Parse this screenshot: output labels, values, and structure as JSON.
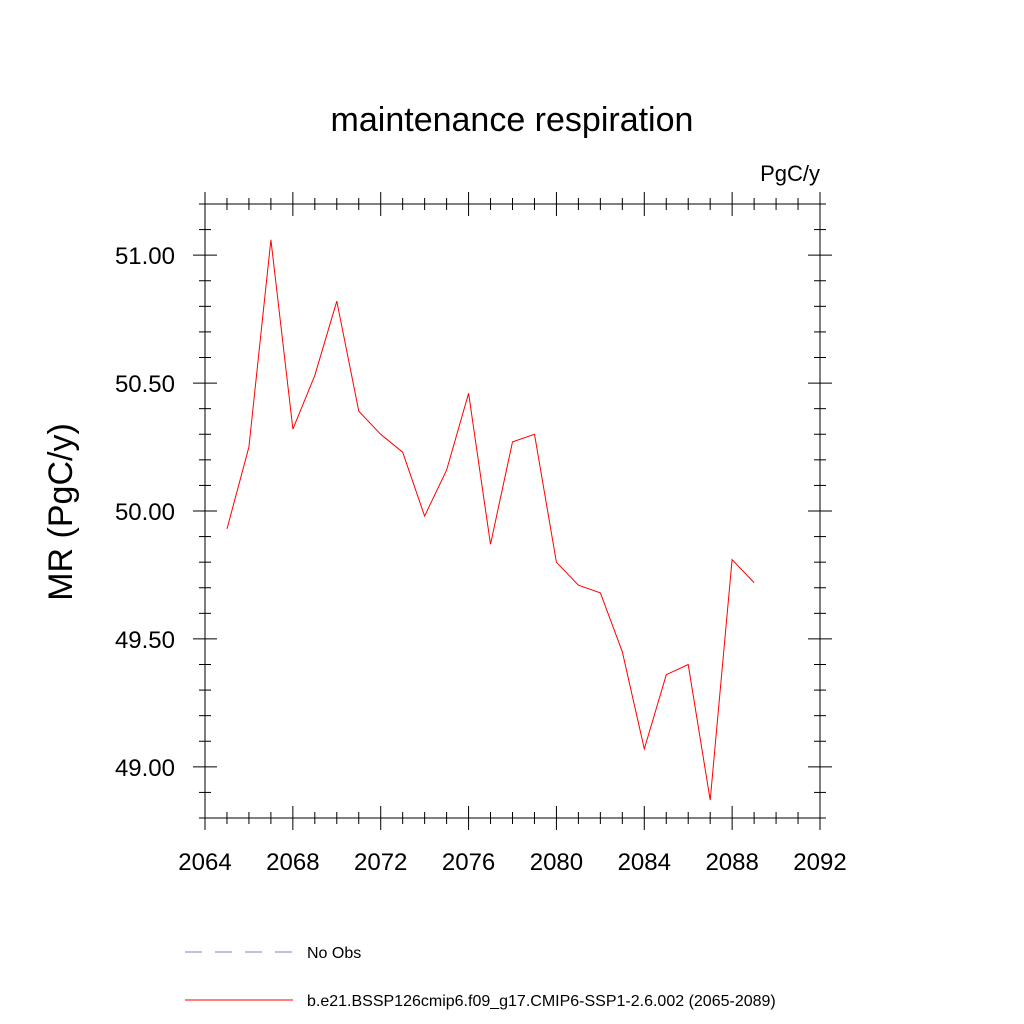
{
  "chart_data": {
    "type": "line",
    "title": "maintenance respiration",
    "units_label": "PgC/y",
    "xlabel": "",
    "ylabel": "MR  (PgC/y)",
    "xlim": [
      2064,
      2092
    ],
    "ylim": [
      48.8,
      51.2
    ],
    "xticks": [
      2064,
      2068,
      2072,
      2076,
      2080,
      2084,
      2088,
      2092
    ],
    "xtick_labels": [
      "2064",
      "2068",
      "2072",
      "2076",
      "2080",
      "2084",
      "2088",
      "2092"
    ],
    "yticks": [
      49.0,
      49.5,
      50.0,
      50.5,
      51.0
    ],
    "ytick_labels": [
      "49.00",
      "49.50",
      "50.00",
      "50.50",
      "51.00"
    ],
    "series": [
      {
        "name": "b.e21.BSSP126cmip6.f09_g17.CMIP6-SSP1-2.6.002 (2065-2089)",
        "color": "#ff0000",
        "x": [
          2065,
          2066,
          2067,
          2068,
          2069,
          2070,
          2071,
          2072,
          2073,
          2074,
          2075,
          2076,
          2077,
          2078,
          2079,
          2080,
          2081,
          2082,
          2083,
          2084,
          2085,
          2086,
          2087,
          2088,
          2089
        ],
        "values": [
          49.93,
          50.25,
          51.06,
          50.32,
          50.53,
          50.82,
          50.39,
          50.3,
          50.23,
          49.98,
          50.16,
          50.46,
          49.87,
          50.27,
          50.3,
          49.8,
          49.71,
          49.68,
          49.45,
          49.07,
          49.36,
          49.4,
          48.87,
          49.81,
          49.72
        ]
      }
    ],
    "legend": [
      {
        "label": "No Obs",
        "color": "#8080c0",
        "style": "dashed"
      },
      {
        "label": "b.e21.BSSP126cmip6.f09_g17.CMIP6-SSP1-2.6.002 (2065-2089)",
        "color": "#ff0000",
        "style": "solid"
      }
    ],
    "legend_position": "bottom"
  }
}
